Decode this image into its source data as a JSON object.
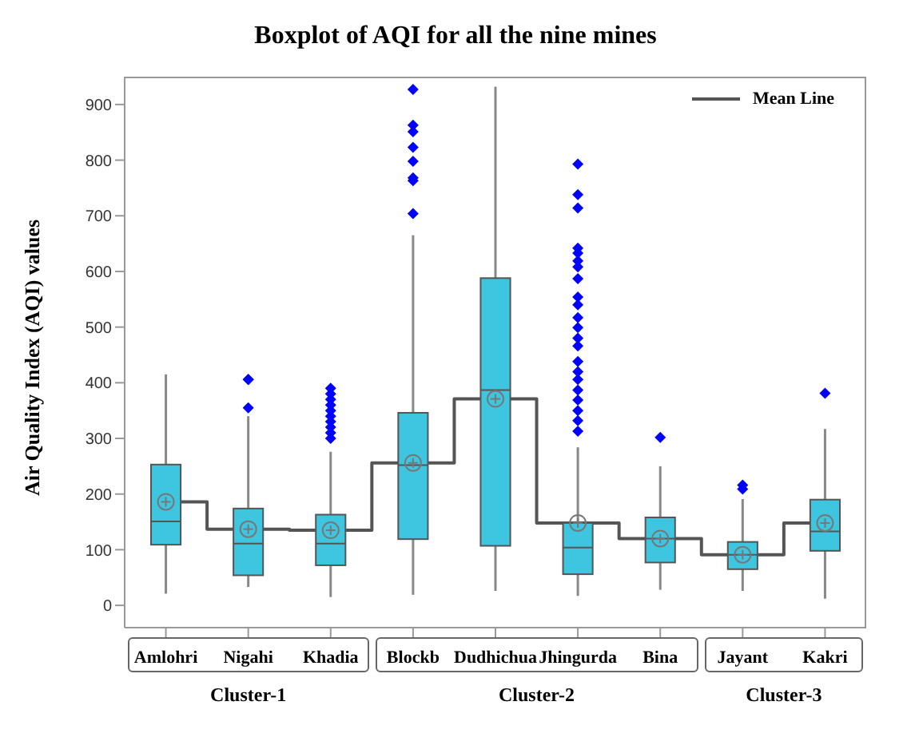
{
  "chart_data": {
    "type": "box",
    "title": "Boxplot of AQI for all the nine mines",
    "ylabel": "Air Quality Index (AQI) values",
    "categories": [
      "Amlohri",
      "Nigahi",
      "Khadia",
      "Blockb",
      "Dudhichua",
      "Jhingurda",
      "Bina",
      "Jayant",
      "Kakri"
    ],
    "color": "#3ec6e0",
    "boxes": [
      {
        "low": 21,
        "q1": 109,
        "median": 151,
        "q3": 253,
        "high": 415,
        "mean": 186
      },
      {
        "low": 33,
        "q1": 54,
        "median": 111,
        "q3": 174,
        "high": 340,
        "mean": 137,
        "outliers": [
          406,
          406,
          355
        ]
      },
      {
        "low": 15,
        "q1": 72,
        "median": 111,
        "q3": 163,
        "high": 276,
        "mean": 135,
        "outliers": [
          300,
          310,
          320,
          330,
          340,
          350,
          360,
          370,
          380,
          390
        ]
      },
      {
        "low": 19,
        "q1": 119,
        "median": 252,
        "q3": 346,
        "high": 665,
        "mean": 256,
        "outliers": [
          704,
          763,
          768,
          798,
          823,
          851,
          863,
          927
        ]
      },
      {
        "low": 26,
        "q1": 107,
        "median": 387,
        "q3": 588,
        "high": 932,
        "mean": 371
      },
      {
        "low": 17,
        "q1": 56,
        "median": 104,
        "q3": 148,
        "high": 284,
        "mean": 148,
        "outliers": [
          313,
          332,
          350,
          369,
          387,
          406,
          420,
          438,
          466,
          480,
          499,
          517,
          540,
          554,
          587,
          608,
          619,
          633,
          642,
          714,
          738,
          793
        ]
      },
      {
        "low": 28,
        "q1": 77,
        "median": 120,
        "q3": 158,
        "high": 250,
        "mean": 120,
        "outliers": [
          302
        ]
      },
      {
        "low": 26,
        "q1": 65,
        "median": 91,
        "q3": 114,
        "high": 191,
        "mean": 91,
        "outliers": [
          209,
          216
        ]
      },
      {
        "low": 12,
        "q1": 98,
        "median": 133,
        "q3": 190,
        "high": 317,
        "mean": 148,
        "outliers": [
          381
        ]
      }
    ],
    "series": [
      {
        "type": "step",
        "name": "Mean Line",
        "color": "#555555",
        "values": [
          186,
          137,
          135,
          256,
          371,
          148,
          120,
          91,
          148
        ]
      }
    ],
    "ylim": [
      -40,
      950
    ],
    "yticks": [
      0,
      100,
      200,
      300,
      400,
      500,
      600,
      700,
      800,
      900
    ],
    "grid": false,
    "legend": "top right",
    "annotations": [
      "Cluster-1",
      "Cluster-2",
      "Cluster-3"
    ]
  }
}
